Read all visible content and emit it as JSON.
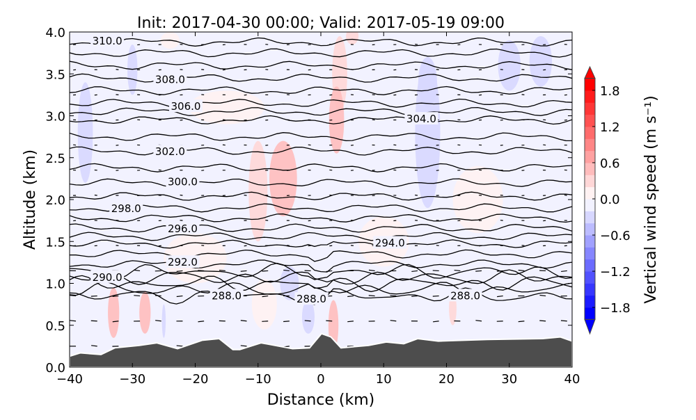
{
  "chart_data": {
    "type": "heatmap",
    "title": "Init: 2017-04-30 00:00; Valid: 2017-05-19 09:00",
    "xlabel": "Distance (km)",
    "ylabel": "Altitude (km)",
    "xlim": [
      -40,
      40
    ],
    "ylim": [
      0,
      4
    ],
    "xticks": [
      "−40",
      "−30",
      "−20",
      "−10",
      "0",
      "10",
      "20",
      "30",
      "40"
    ],
    "xtick_values": [
      -40,
      -30,
      -20,
      -10,
      0,
      10,
      20,
      30,
      40
    ],
    "yticks": [
      "0.0",
      "0.5",
      "1.0",
      "1.5",
      "2.0",
      "2.5",
      "3.0",
      "3.5",
      "4.0"
    ],
    "ytick_values": [
      0,
      0.5,
      1,
      1.5,
      2,
      2.5,
      3,
      3.5,
      4
    ],
    "colorbar": {
      "label": "Vertical wind speed (m s⁻¹)",
      "range": [
        -2,
        2
      ],
      "step": 0.2,
      "extend": "both",
      "ticks": [
        "−1.8",
        "−1.2",
        "−0.6",
        "0.0",
        "0.6",
        "1.2",
        "1.8"
      ],
      "tick_values": [
        -1.8,
        -1.2,
        -0.6,
        0,
        0.6,
        1.2,
        1.8
      ]
    },
    "background_w": -0.1,
    "w_features": [
      [
        -37.5,
        2.8,
        -0.3,
        1.2,
        0.6
      ],
      [
        -30,
        3.55,
        -0.3,
        0.8,
        0.3
      ],
      [
        -33,
        0.65,
        0.6,
        0.9,
        0.3
      ],
      [
        -28,
        0.65,
        0.5,
        0.9,
        0.25
      ],
      [
        -25,
        0.55,
        -0.3,
        0.3,
        0.2
      ],
      [
        -10,
        2.1,
        0.3,
        1.5,
        0.6
      ],
      [
        -6,
        2.25,
        0.5,
        2.2,
        0.45
      ],
      [
        -5,
        1.0,
        -0.4,
        1.5,
        0.2
      ],
      [
        3,
        3.5,
        0.4,
        1.2,
        0.45
      ],
      [
        2.5,
        2.95,
        0.5,
        1.2,
        0.4
      ],
      [
        2,
        0.5,
        0.6,
        0.8,
        0.3
      ],
      [
        -9,
        0.75,
        0.1,
        2,
        0.3
      ],
      [
        17,
        2.8,
        -0.4,
        2,
        0.9
      ],
      [
        17,
        3.4,
        -0.3,
        1.5,
        0.3
      ],
      [
        30,
        3.6,
        -0.4,
        1.8,
        0.3
      ],
      [
        35,
        3.65,
        -0.4,
        1.8,
        0.3
      ],
      [
        21,
        0.7,
        0.3,
        0.6,
        0.2
      ],
      [
        -2,
        0.6,
        -0.3,
        1,
        0.2
      ],
      [
        10,
        1.5,
        0.15,
        4,
        0.3
      ],
      [
        25,
        2.0,
        0.15,
        4,
        0.4
      ],
      [
        -20,
        1.3,
        0.15,
        5,
        0.3
      ],
      [
        -15,
        3.1,
        0.15,
        6,
        0.2
      ],
      [
        5,
        3.95,
        0.4,
        1,
        0.1
      ],
      [
        -24,
        3.9,
        0.2,
        1.5,
        0.1
      ]
    ],
    "contour_levels": [
      287,
      288,
      289,
      290,
      291,
      292,
      293,
      294,
      295,
      296,
      297,
      298,
      299,
      300,
      301,
      302,
      303,
      304,
      305,
      306,
      307,
      308,
      309,
      310,
      311
    ],
    "contour_mean_altitude": [
      0.85,
      0.93,
      1.0,
      1.07,
      1.14,
      1.23,
      1.35,
      1.47,
      1.56,
      1.66,
      1.78,
      1.9,
      2.04,
      2.2,
      2.38,
      2.58,
      2.75,
      2.95,
      3.05,
      3.15,
      3.3,
      3.45,
      3.6,
      3.75,
      3.88
    ],
    "contour_labels": [
      {
        "text": "310.0",
        "x": -34,
        "y": 3.9
      },
      {
        "text": "308.0",
        "x": -24,
        "y": 3.44
      },
      {
        "text": "306.0",
        "x": -21.5,
        "y": 3.12
      },
      {
        "text": "304.0",
        "x": 16,
        "y": 2.97
      },
      {
        "text": "302.0",
        "x": -24,
        "y": 2.58
      },
      {
        "text": "300.0",
        "x": -22,
        "y": 2.22
      },
      {
        "text": "298.0",
        "x": -31,
        "y": 1.9
      },
      {
        "text": "296.0",
        "x": -22,
        "y": 1.66
      },
      {
        "text": "294.0",
        "x": 11,
        "y": 1.49
      },
      {
        "text": "292.0",
        "x": -22,
        "y": 1.26
      },
      {
        "text": "290.0",
        "x": -34,
        "y": 1.08
      },
      {
        "text": "288.0",
        "x": -15,
        "y": 0.86
      },
      {
        "text": "288.0",
        "x": -1.5,
        "y": 0.82
      },
      {
        "text": "288.0",
        "x": 23,
        "y": 0.86
      }
    ],
    "terrain": [
      [
        -40,
        0.13
      ],
      [
        -38.3,
        0.17
      ],
      [
        -35,
        0.15
      ],
      [
        -32.8,
        0.23
      ],
      [
        -28.9,
        0.26
      ],
      [
        -26.1,
        0.29
      ],
      [
        -22.8,
        0.22
      ],
      [
        -18.9,
        0.32
      ],
      [
        -16.2,
        0.34
      ],
      [
        -14,
        0.21
      ],
      [
        -12.9,
        0.21
      ],
      [
        -9.5,
        0.29
      ],
      [
        -4.5,
        0.22
      ],
      [
        -1.8,
        0.23
      ],
      [
        0.1,
        0.4
      ],
      [
        1.6,
        0.36
      ],
      [
        3.2,
        0.23
      ],
      [
        7.6,
        0.26
      ],
      [
        10.4,
        0.3
      ],
      [
        13.2,
        0.28
      ],
      [
        15.4,
        0.34
      ],
      [
        18.7,
        0.31
      ],
      [
        26.5,
        0.33
      ],
      [
        35.3,
        0.34
      ],
      [
        38.1,
        0.36
      ],
      [
        40,
        0.31
      ]
    ]
  }
}
